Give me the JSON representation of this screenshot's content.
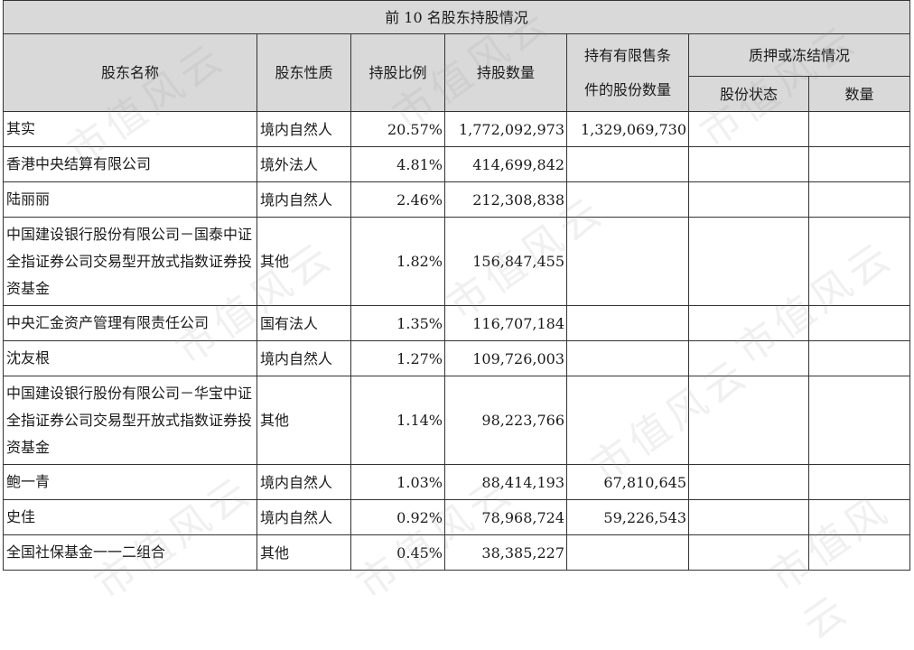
{
  "title": "前 10 名股东持股情况",
  "headers": {
    "name": "股东名称",
    "nature": "股东性质",
    "ratio": "持股比例",
    "count": "持股数量",
    "restricted_line1": "持有有限售条",
    "restricted_line2": "件的股份数量",
    "pledge_group": "质押或冻结情况",
    "pledge_status": "股份状态",
    "pledge_count": "数量"
  },
  "rows": [
    {
      "name": "其实",
      "nature": "境内自然人",
      "ratio": "20.57%",
      "count": "1,772,092,973",
      "restricted": "1,329,069,730",
      "status": "",
      "pledge": ""
    },
    {
      "name": "香港中央结算有限公司",
      "nature": "境外法人",
      "ratio": "4.81%",
      "count": "414,699,842",
      "restricted": "",
      "status": "",
      "pledge": ""
    },
    {
      "name": "陆丽丽",
      "nature": "境内自然人",
      "ratio": "2.46%",
      "count": "212,308,838",
      "restricted": "",
      "status": "",
      "pledge": ""
    },
    {
      "name": "中国建设银行股份有限公司－国泰中证全指证券公司交易型开放式指数证券投资基金",
      "nature": "其他",
      "ratio": "1.82%",
      "count": "156,847,455",
      "restricted": "",
      "status": "",
      "pledge": ""
    },
    {
      "name": "中央汇金资产管理有限责任公司",
      "nature": "国有法人",
      "ratio": "1.35%",
      "count": "116,707,184",
      "restricted": "",
      "status": "",
      "pledge": ""
    },
    {
      "name": "沈友根",
      "nature": "境内自然人",
      "ratio": "1.27%",
      "count": "109,726,003",
      "restricted": "",
      "status": "",
      "pledge": ""
    },
    {
      "name": "中国建设银行股份有限公司－华宝中证全指证券公司交易型开放式指数证券投资基金",
      "nature": "其他",
      "ratio": "1.14%",
      "count": "98,223,766",
      "restricted": "",
      "status": "",
      "pledge": ""
    },
    {
      "name": "鲍一青",
      "nature": "境内自然人",
      "ratio": "1.03%",
      "count": "88,414,193",
      "restricted": "67,810,645",
      "status": "",
      "pledge": ""
    },
    {
      "name": "史佳",
      "nature": "境内自然人",
      "ratio": "0.92%",
      "count": "78,968,724",
      "restricted": "59,226,543",
      "status": "",
      "pledge": ""
    },
    {
      "name": "全国社保基金一一二组合",
      "nature": "其他",
      "ratio": "0.45%",
      "count": "38,385,227",
      "restricted": "",
      "status": "",
      "pledge": ""
    }
  ],
  "watermark": "市值风云"
}
